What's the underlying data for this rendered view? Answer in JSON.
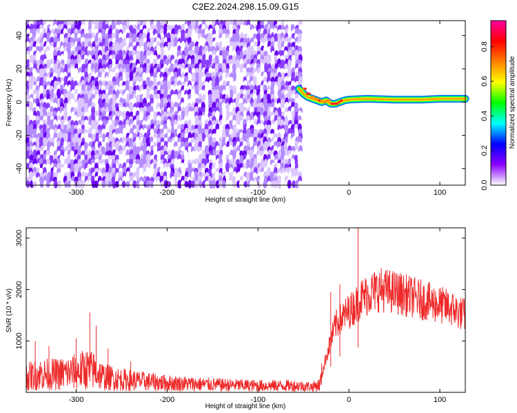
{
  "title": "C2E2.2024.298.15.09.G15",
  "chart_data": [
    {
      "type": "heatmap",
      "xlabel": "Height of straight line (km)",
      "ylabel": "Frequency (Hz)",
      "xlim": [
        -355,
        128
      ],
      "ylim": [
        -50,
        49
      ],
      "x_ticks": [
        -300,
        -200,
        -100,
        0,
        100
      ],
      "y_ticks": [
        -40,
        -20,
        0,
        20,
        40
      ],
      "noise_region": {
        "x_range": [
          -355,
          -55
        ],
        "y_range": [
          -50,
          49
        ]
      },
      "signal_track": [
        {
          "x": -55,
          "y": 8
        },
        {
          "x": -50,
          "y": 5
        },
        {
          "x": -45,
          "y": 3
        },
        {
          "x": -40,
          "y": 2
        },
        {
          "x": -35,
          "y": 1
        },
        {
          "x": -30,
          "y": 0
        },
        {
          "x": -25,
          "y": 1
        },
        {
          "x": -20,
          "y": -1
        },
        {
          "x": -15,
          "y": -1
        },
        {
          "x": -10,
          "y": 0
        },
        {
          "x": -5,
          "y": 1
        },
        {
          "x": 0,
          "y": 1.5
        },
        {
          "x": 20,
          "y": 2
        },
        {
          "x": 50,
          "y": 1.5
        },
        {
          "x": 80,
          "y": 1.5
        },
        {
          "x": 100,
          "y": 2
        },
        {
          "x": 128,
          "y": 2
        }
      ],
      "colorbar": {
        "label": "Normalized spectral amplitude",
        "range": [
          0,
          0.95
        ],
        "ticks": [
          "0.0",
          "0.2",
          "0.4",
          "0.6",
          "0.8"
        ],
        "colors": [
          "#ffffff",
          "#8a00ff",
          "#0000ff",
          "#00ffff",
          "#00ff00",
          "#ffff00",
          "#ff8000",
          "#ff0000",
          "#ff00a0"
        ]
      }
    },
    {
      "type": "line",
      "xlabel": "Height of straight line (km)",
      "ylabel": "SNR (10 * v/v)",
      "xlim": [
        -355,
        128
      ],
      "ylim": [
        0,
        3200
      ],
      "x_ticks": [
        -300,
        -200,
        -100,
        0,
        100
      ],
      "y_ticks": [
        1000,
        2000,
        3000
      ],
      "color": "#ee2a2a",
      "x": [
        -355,
        -340,
        -320,
        -300,
        -290,
        -280,
        -270,
        -250,
        -230,
        -200,
        -150,
        -100,
        -60,
        -40,
        -32,
        -25,
        -15,
        -5,
        5,
        10,
        15,
        25,
        35,
        50,
        70,
        90,
        110,
        128
      ],
      "y": [
        300,
        350,
        350,
        400,
        450,
        420,
        300,
        250,
        220,
        180,
        150,
        130,
        130,
        110,
        150,
        700,
        1300,
        1500,
        1650,
        1750,
        1850,
        1950,
        2000,
        1950,
        1850,
        1750,
        1650,
        1500
      ],
      "spikes": [
        {
          "x": -345,
          "y": 1000
        },
        {
          "x": -330,
          "y": 900
        },
        {
          "x": -300,
          "y": 1050
        },
        {
          "x": -285,
          "y": 1550
        },
        {
          "x": -278,
          "y": 1300
        },
        {
          "x": -265,
          "y": 850
        },
        {
          "x": -240,
          "y": 600
        },
        {
          "x": -20,
          "y": 1950
        },
        {
          "x": -10,
          "y": 2100
        },
        {
          "x": 10,
          "y": 3200
        }
      ]
    }
  ]
}
